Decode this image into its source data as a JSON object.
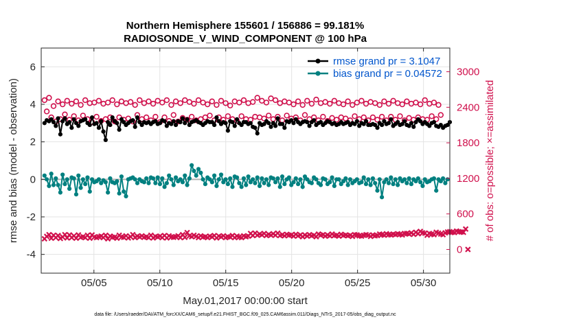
{
  "chart_data": {
    "type": "line",
    "title": [
      "Northern Hemisphere 155601 / 156886 = 99.181%",
      "RADIOSONDE_V_WIND_COMPONENT @ 100 hPa"
    ],
    "xlabel": "May.01,2017 00:00:00 start",
    "ylabel_left": "rmse and bias (model - observation)",
    "ylabel_right": "# of obs: o=possible; ×=assimilated",
    "footer": "data file: /Users/raeder/DAI/ATM_forcXX/CAM6_setup/f.e21.FHIST_BGC.f09_025.CAM6assim.011/Diags_NTrS_2017-05/obs_diag_output.nc",
    "xlim": [
      1,
      32
    ],
    "ylim_left": [
      -5,
      7
    ],
    "ylim_right": [
      -400,
      3400
    ],
    "x_ticks": [
      5,
      10,
      15,
      20,
      25,
      30
    ],
    "x_tick_labels": [
      "05/05",
      "05/10",
      "05/15",
      "05/20",
      "05/25",
      "05/30"
    ],
    "y_ticks_left": [
      -4,
      -2,
      0,
      2,
      4,
      6
    ],
    "y_tick_labels_left": [
      "-4",
      "-2",
      "0",
      "2",
      "4",
      "6"
    ],
    "y_ticks_right": [
      0,
      600,
      1200,
      1800,
      2400,
      3000
    ],
    "y_tick_labels_right": [
      "0",
      "600",
      "1200",
      "1800",
      "2400",
      "3000"
    ],
    "legend": [
      "rmse grand pr = 3.1047",
      "bias grand pr = 0.04572"
    ],
    "colors": {
      "rmse": "#000000",
      "bias": "#008080",
      "obs": "#d0104c",
      "zero": "#b3b3b3"
    },
    "series": {
      "rmse": [
        3.0,
        3.15,
        3.1,
        3.2,
        3.05,
        2.85,
        3.25,
        2.4,
        3.1,
        3.25,
        2.95,
        3.05,
        2.75,
        3.2,
        3.0,
        2.85,
        3.1,
        3.15,
        3.2,
        3.0,
        2.9,
        3.3,
        2.95,
        3.0,
        2.75,
        3.1,
        2.55,
        2.1,
        3.05,
        2.9,
        3.3,
        3.1,
        3.0,
        2.65,
        3.2,
        3.05,
        2.9,
        3.0,
        3.1,
        3.15,
        2.8,
        3.3,
        3.05,
        2.9,
        3.05,
        3.0,
        3.05,
        2.95,
        3.05,
        3.1,
        2.95,
        3.0,
        3.15,
        3.1,
        2.85,
        3.0,
        2.95,
        3.1,
        2.9,
        3.1,
        3.05,
        3.25,
        3.0,
        3.2,
        2.9,
        3.05,
        3.1,
        3.15,
        3.05,
        3.0,
        2.9,
        3.0,
        3.1,
        3.05,
        3.05,
        2.9,
        3.3,
        3.1,
        2.95,
        3.05,
        3.0,
        2.6,
        3.1,
        3.05,
        2.85,
        3.2,
        3.0,
        2.9,
        3.05,
        3.05,
        2.95,
        3.0,
        2.8,
        2.75,
        2.45,
        3.0,
        2.9,
        2.95,
        3.1,
        3.0,
        2.8,
        3.0,
        2.85,
        3.25,
        2.95,
        2.95,
        2.75,
        3.1,
        3.05,
        3.15,
        3.0,
        3.2,
        3.05,
        2.95,
        3.05,
        3.1,
        3.05,
        2.85,
        3.05,
        3.15,
        2.9,
        3.0,
        3.05,
        2.9,
        3.0,
        3.1,
        3.05,
        2.95,
        3.0,
        2.9,
        2.95,
        3.05,
        2.95,
        3.0,
        3.05,
        2.9,
        3.0,
        2.95,
        3.1,
        2.85,
        3.0,
        2.95,
        3.1,
        2.9,
        2.9,
        2.95,
        2.9,
        2.75,
        3.0,
        2.9,
        3.1,
        2.95,
        3.0,
        3.2,
        2.85,
        2.95,
        3.05,
        2.9,
        2.95,
        3.1,
        2.9,
        2.85,
        3.0,
        2.8,
        3.05,
        3.2,
        3.1,
        2.95,
        3.05,
        2.95,
        2.85,
        3.0,
        3.05,
        2.85,
        2.8,
        2.9,
        2.75,
        2.85,
        2.9,
        3.05
      ],
      "bias": [
        0.2,
        0.0,
        -0.35,
        0.3,
        -0.3,
        0.05,
        -0.3,
        -0.7,
        0.25,
        -0.25,
        0.0,
        -0.5,
        0.1,
        0.05,
        -0.8,
        0.2,
        -0.45,
        0.0,
        -0.25,
        0.1,
        -0.65,
        0.0,
        -0.15,
        -0.1,
        0.0,
        -0.2,
        -0.05,
        -0.15,
        -0.7,
        0.05,
        -0.15,
        -0.2,
        -0.1,
        -0.75,
        0.15,
        -0.65,
        -0.9,
        0.0,
        0.05,
        0.1,
        0.0,
        -0.2,
        0.0,
        -0.1,
        -0.15,
        0.05,
        -0.2,
        0.1,
        0.05,
        -0.2,
        0.1,
        -0.25,
        0.05,
        -0.4,
        -0.2,
        0.2,
        0.0,
        -0.3,
        0.1,
        -0.1,
        0.0,
        -0.15,
        0.2,
        -0.3,
        0.05,
        0.75,
        0.45,
        0.2,
        0.55,
        0.35,
        0.0,
        -0.25,
        0.1,
        0.0,
        -0.15,
        0.2,
        -0.35,
        0.0,
        0.25,
        -0.15,
        0.0,
        -0.25,
        0.05,
        -0.4,
        0.15,
        0.1,
        -0.2,
        -0.4,
        0.05,
        -0.3,
        0.15,
        -0.15,
        0.0,
        -0.2,
        0.1,
        -0.35,
        0.05,
        -0.2,
        0.0,
        -0.3,
        0.1,
        0.05,
        -0.15,
        0.05,
        -0.4,
        0.15,
        -0.25,
        0.0,
        0.1,
        -0.3,
        -0.15,
        0.05,
        -0.25,
        0.0,
        -0.4,
        0.15,
        0.0,
        -0.15,
        -0.2,
        0.1,
        0.0,
        -0.2,
        -0.3,
        0.05,
        0.0,
        -0.25,
        -0.15,
        0.1,
        -0.35,
        0.0,
        0.0,
        -0.25,
        -0.1,
        0.05,
        -0.3,
        0.0,
        -0.2,
        -0.1,
        0.0,
        -0.2,
        -0.15,
        0.1,
        -0.25,
        0.0,
        -0.3,
        0.05,
        -0.2,
        -0.6,
        0.0,
        -0.95,
        -0.15,
        0.0,
        -0.2,
        0.1,
        -0.25,
        0.0,
        -0.3,
        0.05,
        -0.1,
        0.0,
        -0.2,
        0.05,
        -0.25,
        0.0,
        -0.1,
        0.05,
        -0.15,
        -0.35,
        0.0,
        -0.15,
        -0.1,
        0.0,
        0.05,
        -0.6,
        0.0,
        -0.1,
        0.05,
        -0.2,
        0.0
      ],
      "obs_possible": [
        2520,
        2330,
        2560,
        2230,
        2420,
        2160,
        2500,
        2200,
        2450,
        2280,
        2510,
        2190,
        2460,
        2250,
        2500,
        2180,
        2440,
        2260,
        2520,
        2200,
        2470,
        2150,
        2480,
        2240,
        2510,
        2170,
        2460,
        2200,
        2480,
        2230,
        2520,
        2160,
        2450,
        2230,
        2500,
        2190,
        2470,
        2210,
        2490,
        2160,
        2440,
        2270,
        2520,
        2200,
        2470,
        2230,
        2500,
        2180,
        2460,
        2240,
        2510,
        2150,
        2480,
        2230,
        2520,
        2170,
        2440,
        2270,
        2500,
        2160,
        2470,
        2220,
        2520,
        2190,
        2490,
        2240,
        2460,
        2180,
        2520,
        2200,
        2480,
        2230,
        2450,
        2260,
        2500,
        2180,
        2440,
        2230,
        2510,
        2190,
        2470,
        2250,
        2430,
        2200,
        2500,
        2170,
        2480,
        2250,
        2520,
        2200,
        2470,
        2190,
        2490,
        2240,
        2560,
        2230,
        2510,
        2210,
        2480,
        2260,
        2550,
        2200,
        2520,
        2240,
        2470,
        2180,
        2500,
        2260,
        2480,
        2210,
        2450,
        2230,
        2500,
        2180,
        2440,
        2270,
        2510,
        2200,
        2460,
        2230,
        2530,
        2180,
        2470,
        2240,
        2490,
        2170,
        2460,
        2220,
        2510,
        2190,
        2470,
        2230,
        2450,
        2210,
        2500,
        2180,
        2440,
        2250,
        2480,
        2200,
        2510,
        2230,
        2460,
        2180,
        2490,
        2230,
        2470,
        2190,
        2440,
        2240,
        2500,
        2180,
        2460,
        2240,
        2510,
        2190,
        2470,
        2250,
        2450,
        2180,
        2500,
        2220,
        2460,
        2190,
        2480,
        2230,
        2450,
        2200,
        2520,
        2190,
        2460,
        2250,
        2480,
        2200,
        2440,
        2270
      ],
      "obs_assimilated": [
        180,
        220,
        250,
        190,
        240,
        200,
        235,
        185,
        210,
        250,
        195,
        245,
        200,
        230,
        190,
        245,
        205,
        215,
        200,
        240,
        190,
        245,
        210,
        200,
        215,
        225,
        200,
        240,
        180,
        225,
        205,
        210,
        190,
        240,
        210,
        205,
        230,
        195,
        215,
        250,
        200,
        225,
        210,
        230,
        205,
        215,
        200,
        240,
        195,
        220,
        210,
        225,
        200,
        235,
        195,
        230,
        210,
        205,
        215,
        230,
        200,
        250,
        205,
        285,
        230,
        215,
        240,
        220,
        200,
        230,
        210,
        215,
        200,
        225,
        210,
        235,
        195,
        225,
        210,
        230,
        200,
        215,
        210,
        235,
        200,
        225,
        210,
        200,
        230,
        215,
        225,
        270,
        235,
        275,
        240,
        260,
        245,
        270,
        235,
        255,
        240,
        265,
        240,
        275,
        235,
        250,
        230,
        255,
        240,
        245,
        225,
        255,
        230,
        245,
        215,
        245,
        225,
        250,
        230,
        240,
        215,
        260,
        240,
        250,
        225,
        245,
        230,
        260,
        235,
        240,
        225,
        255,
        235,
        245,
        230,
        240,
        220,
        250,
        245,
        230,
        225,
        240,
        250,
        240,
        220,
        245,
        230,
        235,
        260,
        250,
        240,
        265,
        250,
        245,
        260,
        250,
        265,
        255,
        245,
        270,
        270,
        260,
        280,
        255,
        290,
        265,
        305,
        280,
        275,
        240,
        270,
        260,
        250,
        290,
        275,
        260,
        250,
        280,
        295,
        300,
        290,
        285,
        310,
        300,
        295,
        290,
        345,
        0
      ]
    }
  }
}
